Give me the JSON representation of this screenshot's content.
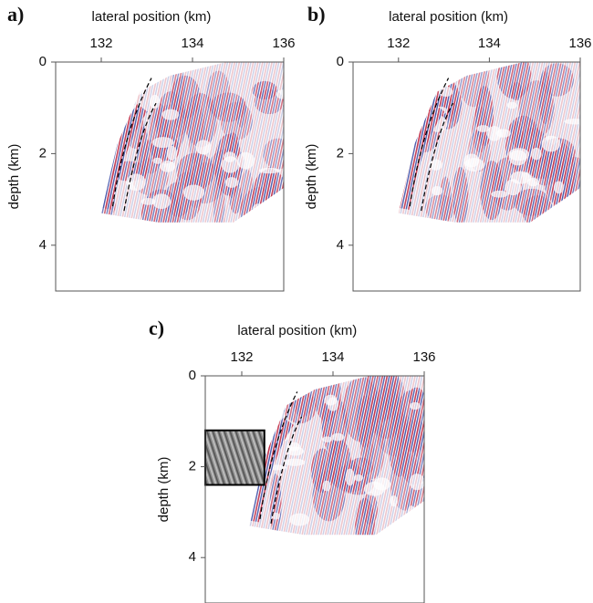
{
  "chart_data": [
    {
      "type": "image",
      "panel_label": "a)",
      "xlabel": "lateral position (km)",
      "ylabel": "depth (km)",
      "xlim": [
        131,
        136
      ],
      "xticks": [
        132,
        134,
        136
      ],
      "ylim": [
        0,
        5
      ],
      "yticks": [
        0,
        2,
        4
      ]
    },
    {
      "type": "image",
      "panel_label": "b)",
      "xlabel": "lateral position (km)",
      "ylabel": "depth (km)",
      "xlim": [
        131,
        136
      ],
      "xticks": [
        132,
        134,
        136
      ],
      "ylim": [
        0,
        5
      ],
      "yticks": [
        0,
        2,
        4
      ]
    },
    {
      "type": "image",
      "panel_label": "c)",
      "xlabel": "lateral position (km)",
      "ylabel": "depth (km)",
      "xlim": [
        131.2,
        136
      ],
      "xticks": [
        132,
        134,
        136
      ],
      "ylim": [
        0,
        5
      ],
      "yticks": [
        0,
        2,
        4
      ]
    }
  ]
}
